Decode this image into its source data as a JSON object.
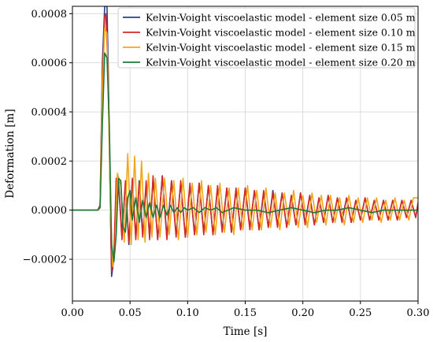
{
  "chart_data": {
    "type": "line",
    "xlabel": "Time [s]",
    "ylabel": "Deformation [m]",
    "xlim": [
      0.0,
      0.3
    ],
    "ylim": [
      -0.00037,
      0.00083
    ],
    "xticks": [
      0.0,
      0.05,
      0.1,
      0.15,
      0.2,
      0.25,
      0.3
    ],
    "xtick_labels": [
      "0.00",
      "0.05",
      "0.10",
      "0.15",
      "0.20",
      "0.25",
      "0.30"
    ],
    "yticks": [
      -0.0002,
      0.0,
      0.0002,
      0.0004,
      0.0006,
      0.0008
    ],
    "ytick_labels": [
      "−0.0002",
      "0.0000",
      "0.0002",
      "0.0004",
      "0.0006",
      "0.0008"
    ],
    "grid": true,
    "legend_position": "top-right",
    "series": [
      {
        "name": "Kelvin-Voight viscoelastic model - element size 0.05 m",
        "color": "#2a3f8f",
        "x": [
          0,
          0.022,
          0.024,
          0.026,
          0.028,
          0.03,
          0.031,
          0.033,
          0.034,
          0.036,
          0.038,
          0.04,
          0.043,
          0.046,
          0.049,
          0.052,
          0.055,
          0.058,
          0.061,
          0.064,
          0.067,
          0.07,
          0.074,
          0.078,
          0.082,
          0.086,
          0.09,
          0.094,
          0.098,
          0.102,
          0.106,
          0.11,
          0.114,
          0.118,
          0.122,
          0.126,
          0.13,
          0.134,
          0.138,
          0.142,
          0.146,
          0.15,
          0.154,
          0.158,
          0.162,
          0.166,
          0.17,
          0.174,
          0.178,
          0.182,
          0.186,
          0.19,
          0.194,
          0.198,
          0.202,
          0.206,
          0.21,
          0.214,
          0.218,
          0.222,
          0.226,
          0.23,
          0.234,
          0.238,
          0.242,
          0.246,
          0.25,
          0.254,
          0.258,
          0.262,
          0.266,
          0.27,
          0.274,
          0.278,
          0.282,
          0.286,
          0.29,
          0.294,
          0.298,
          0.3
        ],
        "y": [
          0,
          0,
          2e-05,
          0.0006,
          0.00083,
          0.00083,
          0.0006,
          0.0,
          -0.00027,
          -0.0002,
          0.0001,
          0.00012,
          -0.0001,
          0.00011,
          -0.00014,
          0.00012,
          -0.00011,
          0.00012,
          -0.0001,
          0.0001,
          -0.00011,
          0.00013,
          -0.00012,
          0.00014,
          -0.00011,
          0.00012,
          -0.0001,
          0.00011,
          -0.00011,
          0.0001,
          -0.0001,
          0.00011,
          -9e-05,
          0.0001,
          -0.0001,
          9e-05,
          -8e-05,
          9e-05,
          -9e-05,
          8e-05,
          -8e-05,
          9e-05,
          -7e-05,
          8e-05,
          -8e-05,
          7e-05,
          -7e-05,
          8e-05,
          -6e-05,
          7e-05,
          -7e-05,
          6e-05,
          -6e-05,
          7e-05,
          -5e-05,
          6e-05,
          -6e-05,
          5e-05,
          -5e-05,
          6e-05,
          -5e-05,
          5e-05,
          -4e-05,
          5e-05,
          -5e-05,
          4e-05,
          -4e-05,
          5e-05,
          -4e-05,
          4e-05,
          -4e-05,
          4e-05,
          -4e-05,
          4e-05,
          -4e-05,
          4e-05,
          -3e-05,
          4e-05,
          -3e-05,
          3e-05
        ]
      },
      {
        "name": "Kelvin-Voight viscoelastic model - element size 0.10 m",
        "color": "#d62728",
        "x": [
          0,
          0.022,
          0.024,
          0.026,
          0.028,
          0.029,
          0.031,
          0.033,
          0.034,
          0.036,
          0.038,
          0.04,
          0.043,
          0.046,
          0.049,
          0.052,
          0.055,
          0.058,
          0.061,
          0.064,
          0.067,
          0.07,
          0.074,
          0.078,
          0.082,
          0.086,
          0.09,
          0.094,
          0.098,
          0.102,
          0.106,
          0.11,
          0.114,
          0.118,
          0.122,
          0.126,
          0.13,
          0.134,
          0.138,
          0.142,
          0.146,
          0.15,
          0.154,
          0.158,
          0.162,
          0.166,
          0.17,
          0.174,
          0.178,
          0.182,
          0.186,
          0.19,
          0.194,
          0.198,
          0.202,
          0.206,
          0.21,
          0.214,
          0.218,
          0.222,
          0.226,
          0.23,
          0.234,
          0.238,
          0.242,
          0.246,
          0.25,
          0.254,
          0.258,
          0.262,
          0.266,
          0.27,
          0.274,
          0.278,
          0.282,
          0.286,
          0.29,
          0.294,
          0.298,
          0.3
        ],
        "y": [
          0,
          0,
          2e-05,
          0.00055,
          0.00079,
          0.0008,
          0.00055,
          0.0,
          -0.00025,
          -0.00018,
          0.00013,
          0.00011,
          -0.00012,
          0.00012,
          -0.00013,
          0.00013,
          -0.00012,
          0.00011,
          -0.00011,
          0.00012,
          -0.00012,
          0.00014,
          -0.00012,
          0.00014,
          -0.00012,
          0.00012,
          -0.00011,
          0.00012,
          -0.00011,
          0.00011,
          -0.0001,
          0.00011,
          -0.0001,
          0.0001,
          -0.0001,
          0.0001,
          -9e-05,
          9e-05,
          -9e-05,
          9e-05,
          -8e-05,
          9e-05,
          -8e-05,
          8e-05,
          -8e-05,
          8e-05,
          -7e-05,
          7e-05,
          -7e-05,
          7e-05,
          -7e-05,
          6e-05,
          -6e-05,
          7e-05,
          -6e-05,
          6e-05,
          -6e-05,
          5e-05,
          -5e-05,
          6e-05,
          -5e-05,
          5e-05,
          -5e-05,
          5e-05,
          -5e-05,
          4e-05,
          -4e-05,
          5e-05,
          -4e-05,
          4e-05,
          -4e-05,
          4e-05,
          -4e-05,
          4e-05,
          -4e-05,
          4e-05,
          -3e-05,
          4e-05,
          -3e-05,
          3e-05
        ]
      },
      {
        "name": "Kelvin-Voight viscoelastic model - element size 0.15 m",
        "color": "#f2a71b",
        "x": [
          0,
          0.022,
          0.024,
          0.026,
          0.028,
          0.03,
          0.031,
          0.033,
          0.035,
          0.037,
          0.039,
          0.042,
          0.045,
          0.048,
          0.051,
          0.054,
          0.057,
          0.06,
          0.063,
          0.066,
          0.069,
          0.072,
          0.076,
          0.08,
          0.084,
          0.088,
          0.092,
          0.096,
          0.1,
          0.104,
          0.108,
          0.112,
          0.116,
          0.12,
          0.124,
          0.128,
          0.132,
          0.136,
          0.14,
          0.144,
          0.148,
          0.152,
          0.156,
          0.16,
          0.164,
          0.168,
          0.172,
          0.176,
          0.18,
          0.184,
          0.188,
          0.192,
          0.196,
          0.2,
          0.204,
          0.208,
          0.212,
          0.216,
          0.22,
          0.224,
          0.228,
          0.232,
          0.236,
          0.24,
          0.244,
          0.248,
          0.252,
          0.256,
          0.26,
          0.264,
          0.268,
          0.272,
          0.276,
          0.28,
          0.284,
          0.288,
          0.292,
          0.296,
          0.3
        ],
        "y": [
          0,
          0,
          1e-05,
          0.0005,
          0.00074,
          0.00072,
          0.0005,
          0.0,
          -0.00023,
          -0.00016,
          0.00015,
          0.0001,
          -0.00013,
          0.00023,
          -0.00014,
          0.00022,
          -0.00012,
          0.0002,
          -0.00013,
          0.00015,
          -0.00011,
          0.00013,
          -0.00011,
          0.00013,
          -0.0001,
          0.00012,
          -0.00012,
          0.00013,
          -0.00011,
          0.00011,
          -0.0001,
          0.00012,
          -9e-05,
          0.0001,
          -0.0001,
          0.00011,
          -9e-05,
          9e-05,
          -0.0001,
          9e-05,
          -8e-05,
          0.0001,
          -8e-05,
          8e-05,
          -8e-05,
          9e-05,
          -7e-05,
          7e-05,
          -8e-05,
          7e-05,
          -6e-05,
          8e-05,
          -7e-05,
          6e-05,
          -7e-05,
          7e-05,
          -5e-05,
          6e-05,
          -6e-05,
          6e-05,
          -5e-05,
          5e-05,
          -6e-05,
          6e-05,
          -5e-05,
          5e-05,
          -5e-05,
          5e-05,
          -4e-05,
          5e-05,
          -5e-05,
          4e-05,
          -4e-05,
          5e-05,
          -4e-05,
          4e-05,
          -4e-05,
          5e-05,
          5e-05
        ]
      },
      {
        "name": "Kelvin-Voight viscoelastic model - element size 0.20 m",
        "color": "#1f7a3a",
        "x": [
          0,
          0.022,
          0.024,
          0.026,
          0.028,
          0.03,
          0.032,
          0.034,
          0.036,
          0.038,
          0.04,
          0.042,
          0.044,
          0.046,
          0.048,
          0.05,
          0.052,
          0.055,
          0.058,
          0.061,
          0.064,
          0.067,
          0.07,
          0.073,
          0.076,
          0.079,
          0.082,
          0.085,
          0.088,
          0.091,
          0.094,
          0.097,
          0.1,
          0.105,
          0.11,
          0.115,
          0.12,
          0.125,
          0.13,
          0.135,
          0.14,
          0.15,
          0.16,
          0.17,
          0.18,
          0.19,
          0.2,
          0.21,
          0.22,
          0.23,
          0.24,
          0.25,
          0.26,
          0.27,
          0.28,
          0.29,
          0.3
        ],
        "y": [
          0,
          0,
          1e-05,
          0.00035,
          0.00064,
          0.00062,
          0.00035,
          -0.00014,
          -0.00021,
          -0.0001,
          0.00013,
          0.00012,
          -7e-05,
          -9e-05,
          5e-05,
          8e-05,
          -4e-05,
          5e-05,
          -5e-05,
          4e-05,
          -3e-05,
          3e-05,
          -3e-05,
          2e-05,
          -3e-05,
          2e-05,
          -2e-05,
          2e-05,
          -1e-05,
          1e-05,
          -1e-05,
          1e-05,
          0.0,
          1e-05,
          -1e-05,
          1e-05,
          0.0,
          1e-05,
          -1e-05,
          0.0,
          1e-05,
          0.0,
          0.0,
          -1e-05,
          0.0,
          1e-05,
          0.0,
          -1e-05,
          0.0,
          0.0,
          1e-05,
          0.0,
          -1e-05,
          0.0,
          0.0,
          0.0,
          0.0
        ]
      }
    ]
  }
}
